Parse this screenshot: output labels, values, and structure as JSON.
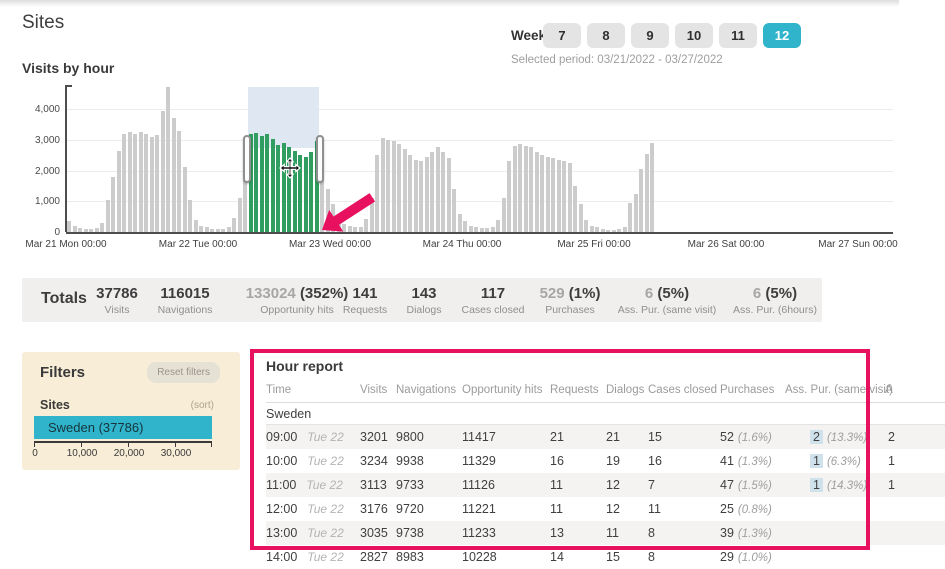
{
  "page": {
    "title": "Sites"
  },
  "colors": {
    "accent_teal": "#2fb4cc",
    "bar_gray": "#cccccc",
    "bar_selected_green": "#2f9e60",
    "annotation_pink": "#e8115f",
    "selection_overlay_blue": "#dce6f1",
    "assisted_highlight_blue": "#cfe2ec",
    "filters_bg": "#f8edd7"
  },
  "week_selector": {
    "label": "Week:",
    "weeks": [
      {
        "label": "7",
        "selected": false
      },
      {
        "label": "8",
        "selected": false
      },
      {
        "label": "9",
        "selected": false
      },
      {
        "label": "10",
        "selected": false
      },
      {
        "label": "11",
        "selected": false
      },
      {
        "label": "12",
        "selected": true
      }
    ],
    "selected_period": "Selected period: 03/21/2022 - 03/27/2022"
  },
  "chart_data": {
    "type": "bar",
    "title": "Visits by hour",
    "xlabel": "",
    "ylabel": "",
    "ylim": [
      0,
      4700
    ],
    "yticks": [
      0,
      1000,
      2000,
      3000,
      4000
    ],
    "ytick_labels": [
      "0",
      "1,000",
      "2,000",
      "3,000",
      "4,000"
    ],
    "x_tick_labels": [
      "Mar 21 Mon 00:00",
      "Mar 22 Tue 00:00",
      "Mar 23 Wed 00:00",
      "Mar 24 Thu 00:00",
      "Mar 25 Fri 00:00",
      "Mar 26 Sat 00:00",
      "Mar 27 Sun 00:00"
    ],
    "hours_per_day": 24,
    "grid": true,
    "values_by_day": [
      [
        350,
        200,
        140,
        100,
        90,
        140,
        300,
        1050,
        1800,
        2650,
        3200,
        3250,
        3200,
        3240,
        3180,
        3100,
        3150,
        3950,
        4700,
        3700,
        3300,
        2100,
        1050,
        400
      ],
      [
        200,
        150,
        110,
        90,
        100,
        150,
        450,
        1100,
        1700,
        3201,
        3234,
        3113,
        3176,
        3035,
        2827,
        2900,
        2780,
        2650,
        2520,
        2450,
        2600,
        2950,
        2750,
        1400
      ],
      [
        900,
        400,
        250,
        180,
        150,
        160,
        420,
        1100,
        2500,
        3050,
        3000,
        2950,
        2850,
        2700,
        2500,
        2350,
        2300,
        2450,
        2600,
        2750,
        2600,
        2400,
        1400,
        600
      ],
      [
        350,
        200,
        150,
        120,
        120,
        160,
        400,
        1100,
        2300,
        2800,
        2850,
        2800,
        2750,
        2600,
        2500,
        2450,
        2400,
        2350,
        2300,
        2250,
        1500,
        900,
        400,
        200
      ],
      [
        150,
        100,
        80,
        80,
        100,
        150,
        950,
        1250,
        2050,
        2550,
        2900
      ],
      [],
      []
    ],
    "selection": {
      "day_index": 1,
      "start_hour": 9,
      "end_hour": 21
    }
  },
  "totals": {
    "label": "Totals",
    "stats": [
      {
        "gray": "",
        "dark": "37786",
        "label": "Visits"
      },
      {
        "gray": "",
        "dark": "116015",
        "label": "Navigations"
      },
      {
        "gray": "133024 ",
        "dark": "(352%)",
        "label": "Opportunity hits"
      },
      {
        "gray": "",
        "dark": "141",
        "label": "Requests"
      },
      {
        "gray": "",
        "dark": "143",
        "label": "Dialogs"
      },
      {
        "gray": "",
        "dark": "117",
        "label": "Cases closed"
      },
      {
        "gray": "529 ",
        "dark": "(1%)",
        "label": "Purchases"
      },
      {
        "gray": "6 ",
        "dark": "(5%)",
        "label": "Ass. Pur. (same visit)"
      },
      {
        "gray": "6 ",
        "dark": "(5%)",
        "label": "Ass. Pur. (6hours)"
      }
    ]
  },
  "filters": {
    "title": "Filters",
    "reset_button": "Reset filters",
    "section": "Sites",
    "sort_link": "(sort)",
    "bar": {
      "label": "Sweden (37786)",
      "value": 37786
    },
    "axis_ticks": [
      "0",
      "10,000",
      "20,000",
      "30,000"
    ]
  },
  "hour_report": {
    "title": "Hour report",
    "group": "Sweden",
    "columns": [
      "Time",
      "Visits",
      "Navigations",
      "Opportunity hits",
      "Requests",
      "Dialogs",
      "Cases closed",
      "Purchases",
      "Ass. Pur. (same visit)",
      "A"
    ],
    "rows": [
      {
        "time": "09:00",
        "day": "Tue 22",
        "visits": "3201",
        "navigations": "9800",
        "opportunity_hits": "11417",
        "requests": "21",
        "dialogs": "21",
        "cases_closed": "15",
        "purchases": "52",
        "purchases_pct": "(1.6%)",
        "ass_pur_same": "2",
        "ass_pur_same_pct": "(13.3%)",
        "ass_pur_6h": "2"
      },
      {
        "time": "10:00",
        "day": "Tue 22",
        "visits": "3234",
        "navigations": "9938",
        "opportunity_hits": "11329",
        "requests": "16",
        "dialogs": "19",
        "cases_closed": "16",
        "purchases": "41",
        "purchases_pct": "(1.3%)",
        "ass_pur_same": "1",
        "ass_pur_same_pct": "(6.3%)",
        "ass_pur_6h": "1"
      },
      {
        "time": "11:00",
        "day": "Tue 22",
        "visits": "3113",
        "navigations": "9733",
        "opportunity_hits": "11126",
        "requests": "11",
        "dialogs": "12",
        "cases_closed": "7",
        "purchases": "47",
        "purchases_pct": "(1.5%)",
        "ass_pur_same": "1",
        "ass_pur_same_pct": "(14.3%)",
        "ass_pur_6h": "1"
      },
      {
        "time": "12:00",
        "day": "Tue 22",
        "visits": "3176",
        "navigations": "9720",
        "opportunity_hits": "11221",
        "requests": "11",
        "dialogs": "12",
        "cases_closed": "11",
        "purchases": "25",
        "purchases_pct": "(0.8%)",
        "ass_pur_same": "",
        "ass_pur_same_pct": "",
        "ass_pur_6h": ""
      },
      {
        "time": "13:00",
        "day": "Tue 22",
        "visits": "3035",
        "navigations": "9738",
        "opportunity_hits": "11233",
        "requests": "13",
        "dialogs": "11",
        "cases_closed": "8",
        "purchases": "39",
        "purchases_pct": "(1.3%)",
        "ass_pur_same": "",
        "ass_pur_same_pct": "",
        "ass_pur_6h": ""
      },
      {
        "time": "14:00",
        "day": "Tue 22",
        "visits": "2827",
        "navigations": "8983",
        "opportunity_hits": "10228",
        "requests": "14",
        "dialogs": "15",
        "cases_closed": "8",
        "purchases": "29",
        "purchases_pct": "(1.0%)",
        "ass_pur_same": "",
        "ass_pur_same_pct": "",
        "ass_pur_6h": ""
      }
    ]
  }
}
